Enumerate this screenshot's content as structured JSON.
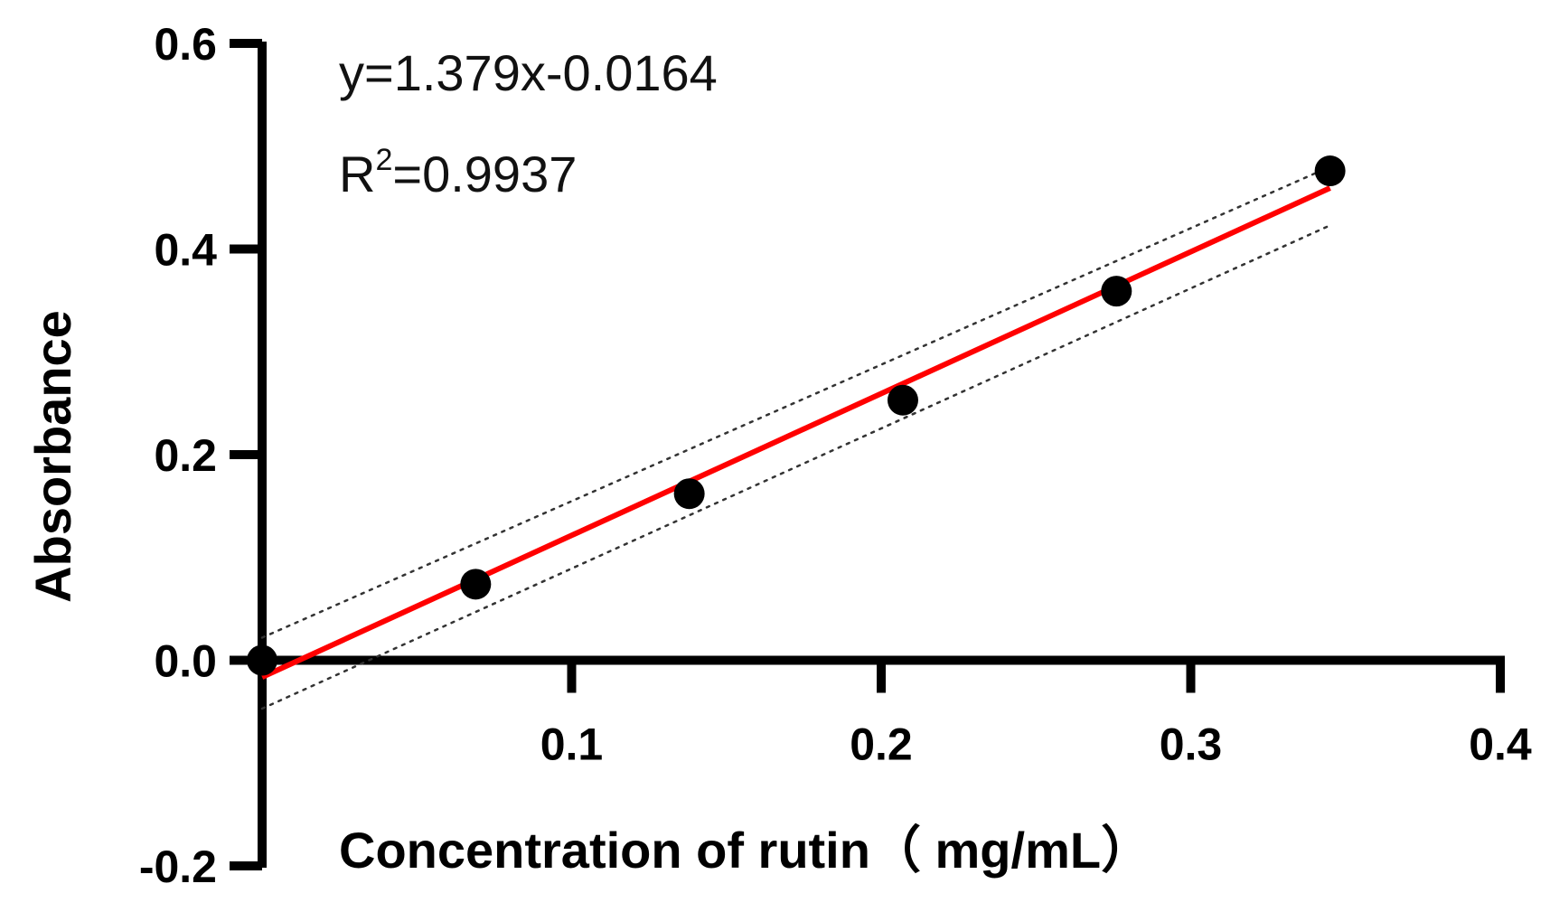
{
  "chart_data": {
    "type": "scatter",
    "title": "",
    "xlabel": "Concentration of rutin（ mg/mL）",
    "ylabel": "Absorbance",
    "xlim": [
      0,
      0.4
    ],
    "ylim": [
      -0.2,
      0.6
    ],
    "x_ticks": [
      "0.1",
      "0.2",
      "0.3",
      "0.4"
    ],
    "y_ticks": [
      "-0.2",
      "0.0",
      "0.2",
      "0.4",
      "0.6"
    ],
    "x_tick_values": [
      0.1,
      0.2,
      0.3,
      0.4
    ],
    "y_tick_values": [
      -0.2,
      0.0,
      0.2,
      0.4,
      0.6
    ],
    "grid": false,
    "series": [
      {
        "points": [
          {
            "x": 0.0,
            "y": 0.0
          },
          {
            "x": 0.069,
            "y": 0.074
          },
          {
            "x": 0.138,
            "y": 0.162
          },
          {
            "x": 0.207,
            "y": 0.253
          },
          {
            "x": 0.276,
            "y": 0.359
          },
          {
            "x": 0.345,
            "y": 0.476
          }
        ]
      }
    ],
    "regression": {
      "slope": 1.379,
      "intercept": -0.0164,
      "x_range": [
        0.0,
        0.345
      ]
    },
    "confidence_band": {
      "upper": [
        {
          "x": 0.0,
          "y": 0.022
        },
        {
          "x": 0.345,
          "y": 0.48
        }
      ],
      "lower": [
        {
          "x": 0.0,
          "y": -0.047
        },
        {
          "x": 0.345,
          "y": 0.423
        }
      ]
    },
    "annotations": {
      "equation": "y=1.379x-0.0164",
      "r2_prefix": "R",
      "r2_superscript": "2",
      "r2_value": "=0.9937"
    },
    "colors": {
      "points": "#000000",
      "regression_line": "#ff0000",
      "confidence_band": "#333333",
      "axes": "#000000"
    }
  }
}
